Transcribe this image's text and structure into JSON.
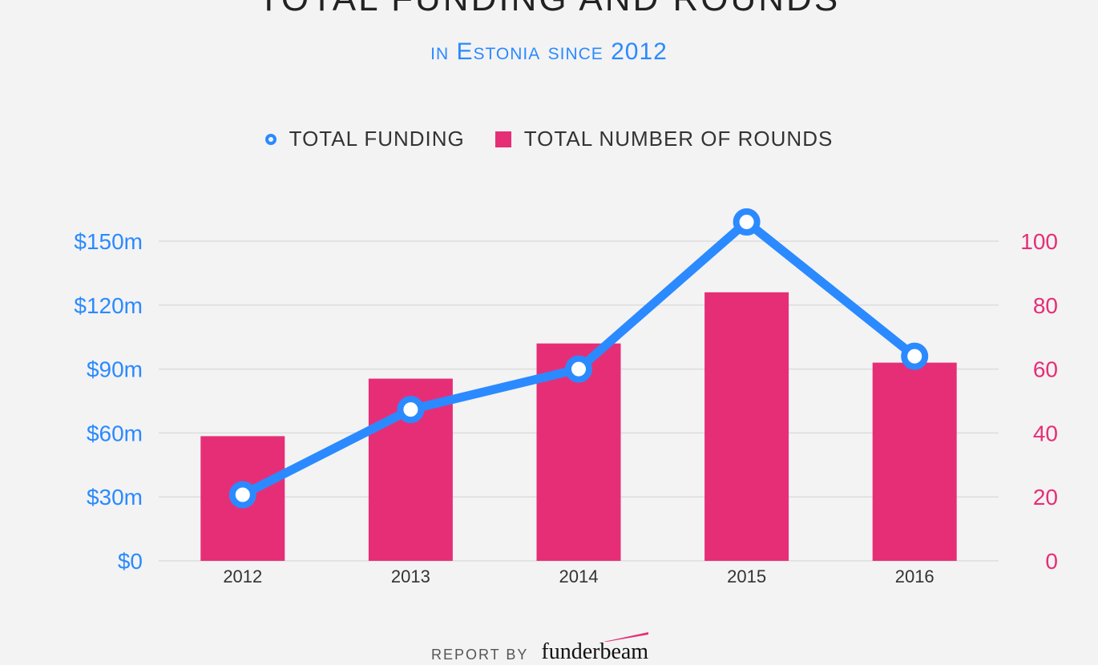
{
  "header": {
    "title": "TOTAL FUNDING AND ROUNDS",
    "subtitle": "in Estonia since 2012"
  },
  "legend": {
    "funding_label": "TOTAL FUNDING",
    "rounds_label": "TOTAL NUMBER OF ROUNDS"
  },
  "footer": {
    "report_by": "REPORT BY",
    "brand": "funderbeam"
  },
  "colors": {
    "funding": "#2b8aff",
    "rounds": "#e62e77",
    "background": "#f3f3f3",
    "grid": "#dddddd"
  },
  "chart_data": {
    "type": "bar",
    "categories": [
      "2012",
      "2013",
      "2014",
      "2015",
      "2016"
    ],
    "series": [
      {
        "name": "TOTAL NUMBER OF ROUNDS",
        "type": "bar",
        "axis": "right",
        "values": [
          39,
          57,
          68,
          84,
          62
        ]
      },
      {
        "name": "TOTAL FUNDING",
        "type": "line",
        "axis": "left",
        "values": [
          31,
          71,
          90,
          159,
          96
        ]
      }
    ],
    "y_left": {
      "ticks": [
        "$0",
        "$30m",
        "$60m",
        "$90m",
        "$120m",
        "$150m"
      ],
      "tick_values": [
        0,
        30,
        60,
        90,
        120,
        150
      ],
      "ylim": [
        0,
        150
      ]
    },
    "y_right": {
      "ticks": [
        "0",
        "20",
        "40",
        "60",
        "80",
        "100"
      ],
      "tick_values": [
        0,
        20,
        40,
        60,
        80,
        100
      ],
      "ylim": [
        0,
        100
      ]
    },
    "grid": true,
    "legend_position": "top-center"
  }
}
